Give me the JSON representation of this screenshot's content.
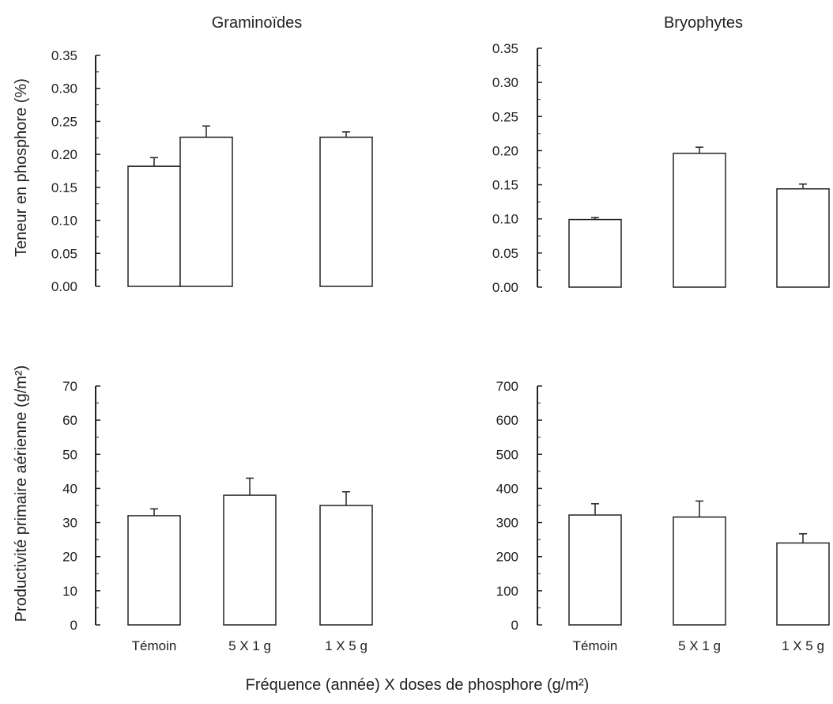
{
  "figure": {
    "ylabel_top": "Teneur en phosphore (%)",
    "ylabel_bottom": "Productivité primaire aérienne (g/m²)",
    "xlabel": "Fréquence (année) X doses de phosphore (g/m²)"
  },
  "chart_data": [
    {
      "type": "bar",
      "title": "Graminoïdes",
      "categories": [
        "",
        "",
        ""
      ],
      "values": [
        0.182,
        0.226,
        0.226
      ],
      "errors": [
        0.013,
        0.017,
        0.008
      ],
      "ylim": [
        0,
        0.35
      ],
      "yticks": [
        0.0,
        0.05,
        0.1,
        0.15,
        0.2,
        0.25,
        0.3,
        0.35
      ],
      "ytick_labels": [
        "0.00",
        "0.05",
        "0.10",
        "0.15",
        "0.20",
        "0.25",
        "0.30",
        "0.35"
      ],
      "grid": false
    },
    {
      "type": "bar",
      "title": "Bryophytes",
      "categories": [
        "",
        "",
        ""
      ],
      "values": [
        0.099,
        0.196,
        0.144
      ],
      "errors": [
        0.003,
        0.009,
        0.007
      ],
      "ylim": [
        0,
        0.35
      ],
      "yticks": [
        0.0,
        0.05,
        0.1,
        0.15,
        0.2,
        0.25,
        0.3,
        0.35
      ],
      "ytick_labels": [
        "0.00",
        "0.05",
        "0.10",
        "0.15",
        "0.20",
        "0.25",
        "0.30",
        "0.35"
      ],
      "grid": false
    },
    {
      "type": "bar",
      "title": "",
      "categories": [
        "Témoin",
        "5 X 1 g",
        "1 X 5 g"
      ],
      "values": [
        32,
        38,
        35
      ],
      "errors": [
        2,
        5,
        4
      ],
      "ylim": [
        0,
        70
      ],
      "yticks": [
        0,
        10,
        20,
        30,
        40,
        50,
        60,
        70
      ],
      "ytick_labels": [
        "0",
        "10",
        "20",
        "30",
        "40",
        "50",
        "60",
        "70"
      ],
      "grid": false
    },
    {
      "type": "bar",
      "title": "",
      "categories": [
        "Témoin",
        "5 X 1 g",
        "1 X 5 g"
      ],
      "values": [
        322,
        316,
        240
      ],
      "errors": [
        33,
        47,
        27
      ],
      "ylim": [
        0,
        700
      ],
      "yticks": [
        0,
        100,
        200,
        300,
        400,
        500,
        600,
        700
      ],
      "ytick_labels": [
        "0",
        "100",
        "200",
        "300",
        "400",
        "500",
        "600",
        "700"
      ],
      "grid": false
    }
  ]
}
